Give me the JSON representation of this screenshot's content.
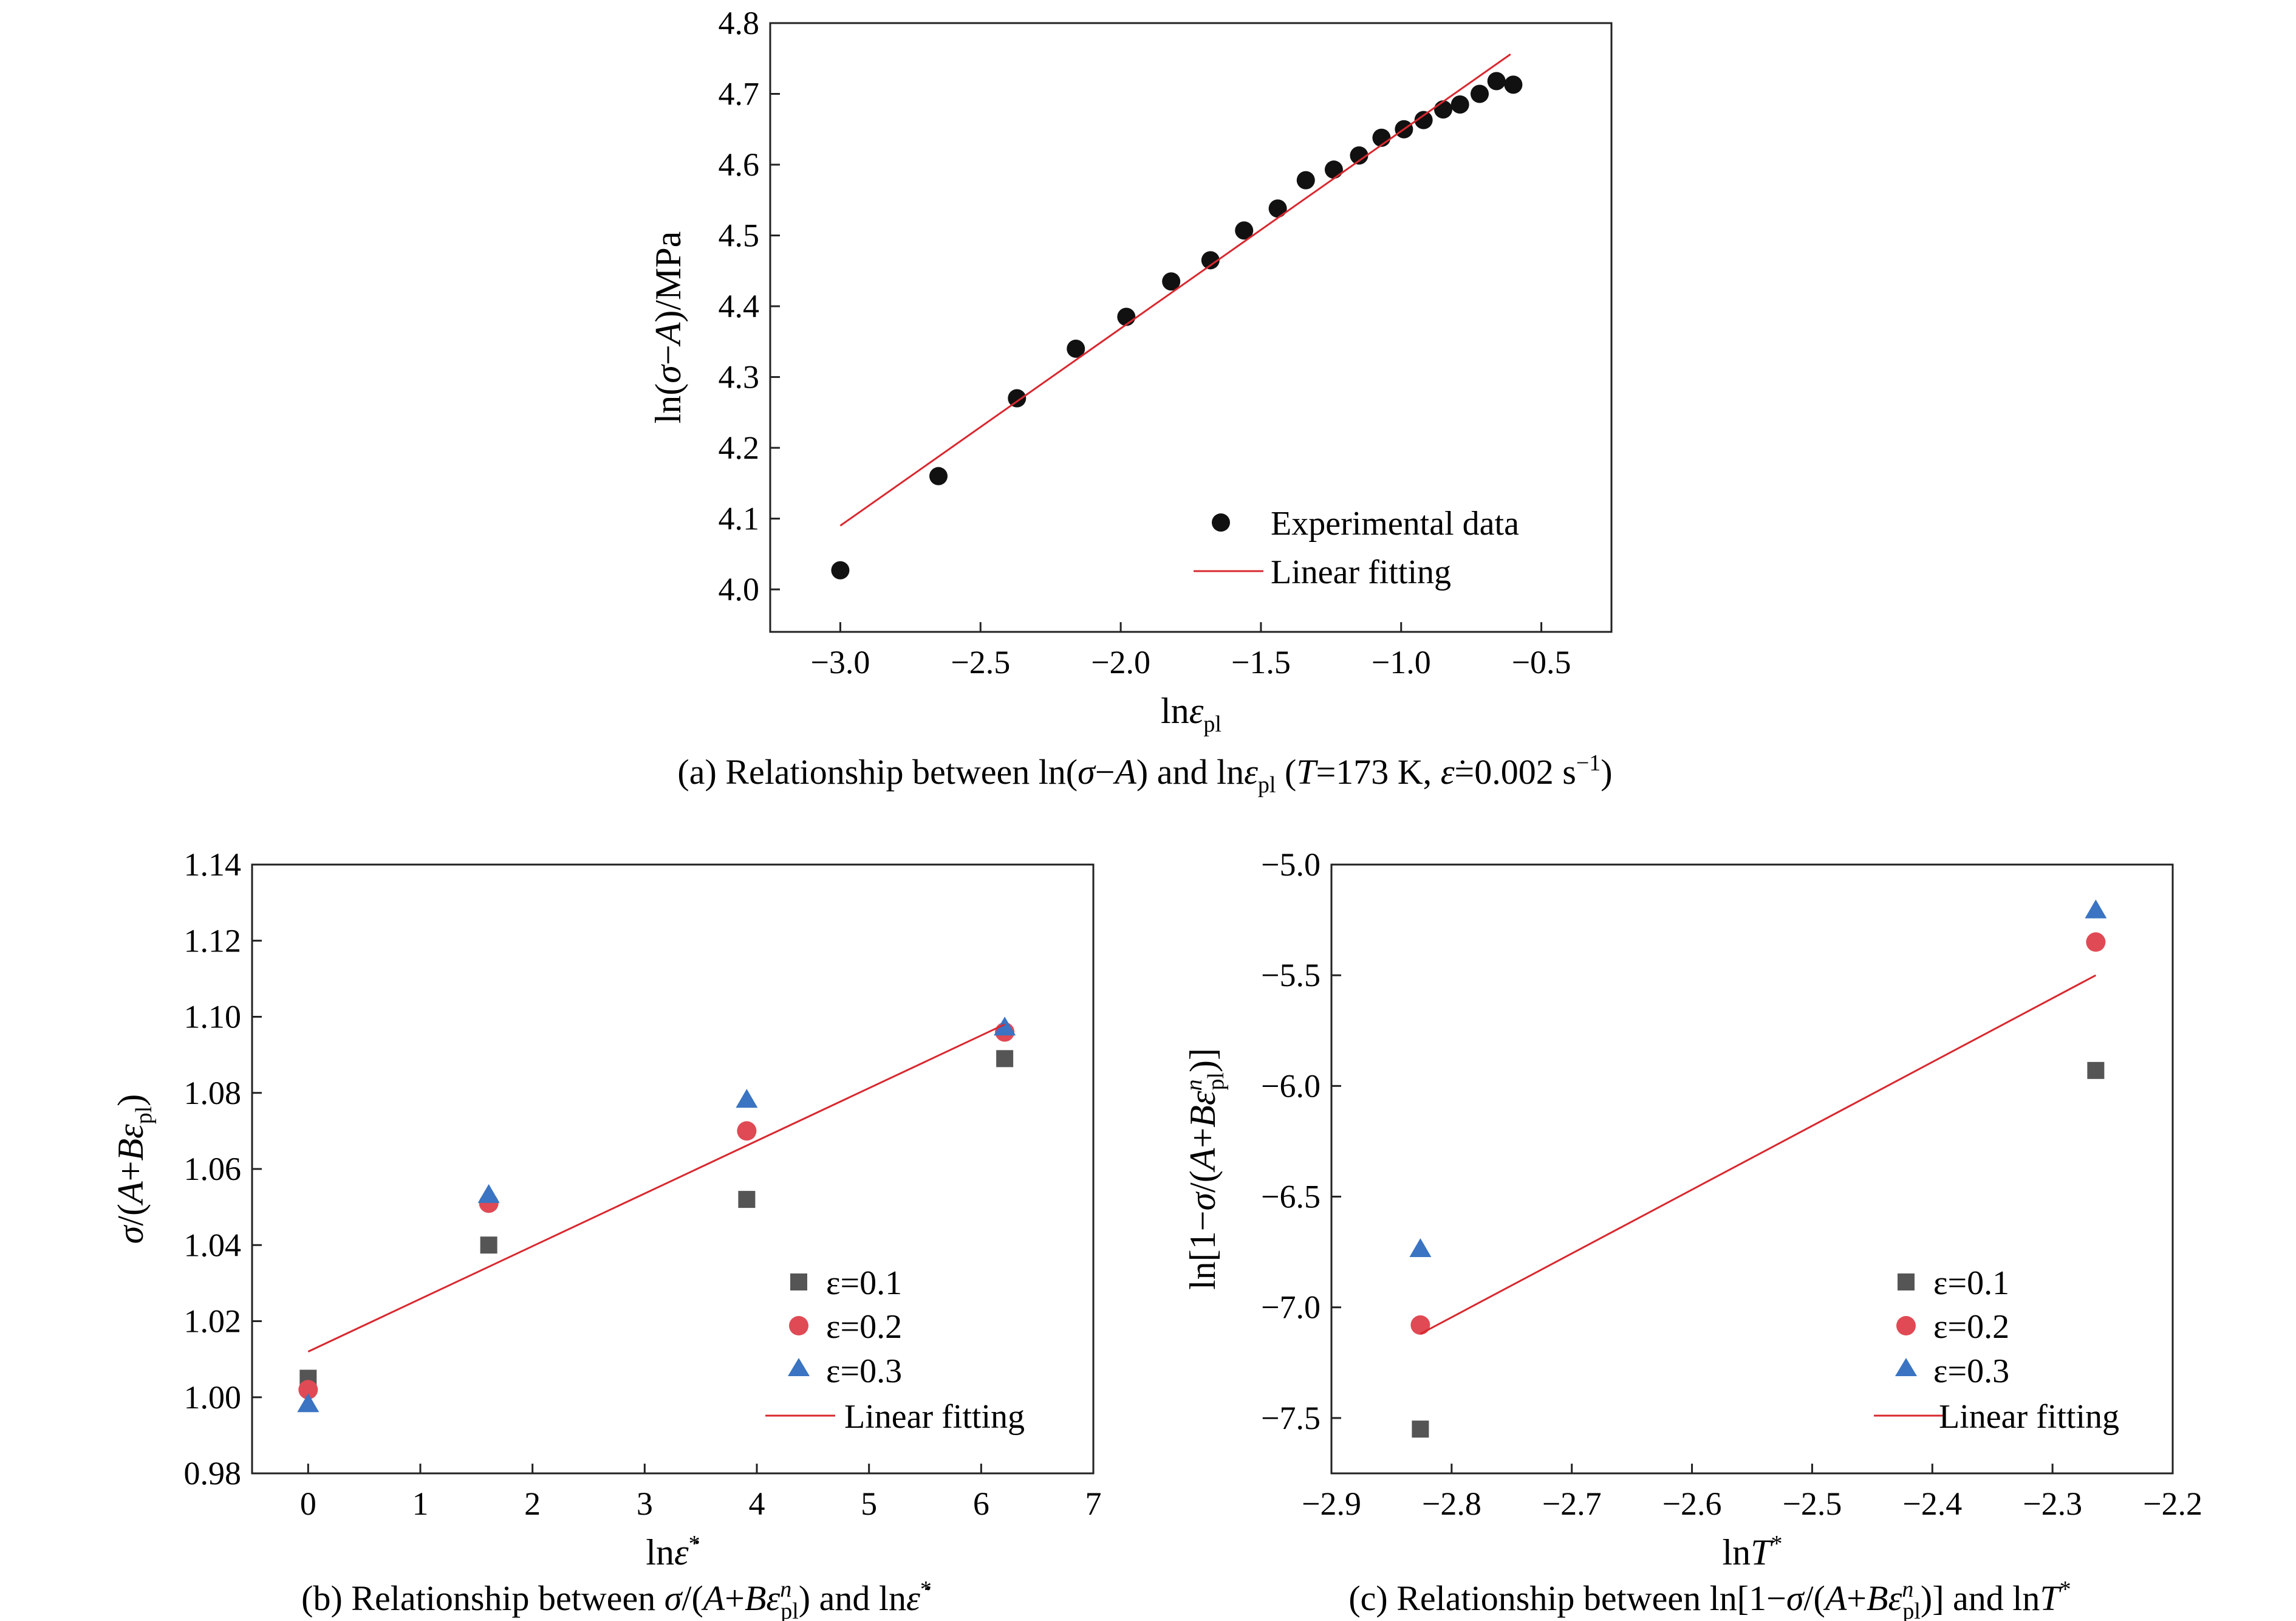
{
  "chart_data": [
    {
      "id": "a",
      "type": "scatter",
      "caption": "(a) Relationship between ln(σ−A) and lnεpl (T=173 K, ε̇=0.002 s⁻¹)",
      "xlabel": "lnεpl",
      "ylabel": "ln(σ−A)/MPa",
      "xlim": [
        -3.25,
        -0.25
      ],
      "ylim": [
        3.94,
        4.8
      ],
      "xticks": [
        -3.0,
        -2.5,
        -2.0,
        -1.5,
        -1.0,
        -0.5
      ],
      "xtick_labels": [
        "−3.0",
        "−2.5",
        "−2.0",
        "−1.5",
        "−1.0",
        "−0.5"
      ],
      "yticks": [
        4.0,
        4.1,
        4.2,
        4.3,
        4.4,
        4.5,
        4.6,
        4.7,
        4.8
      ],
      "ytick_labels": [
        "4.0",
        "4.1",
        "4.2",
        "4.3",
        "4.4",
        "4.5",
        "4.6",
        "4.7",
        "4.8"
      ],
      "legend_position": "bottom-right",
      "grid": false,
      "series": [
        {
          "name": "Experimental data",
          "marker": "circle",
          "color": "#111111",
          "x": [
            -3.0,
            -2.65,
            -2.37,
            -2.16,
            -1.98,
            -1.82,
            -1.68,
            -1.56,
            -1.44,
            -1.34,
            -1.24,
            -1.15,
            -1.07,
            -0.99,
            -0.92,
            -0.85,
            -0.79,
            -0.72,
            -0.66,
            -0.6
          ],
          "y": [
            4.027,
            4.16,
            4.27,
            4.34,
            4.385,
            4.435,
            4.465,
            4.507,
            4.538,
            4.578,
            4.593,
            4.613,
            4.638,
            4.65,
            4.663,
            4.678,
            4.685,
            4.7,
            4.718,
            4.713
          ]
        },
        {
          "name": "Linear fitting",
          "line": true,
          "color": "#d9282f",
          "x": [
            -3.0,
            -0.61
          ],
          "y": [
            4.09,
            4.756
          ]
        }
      ]
    },
    {
      "id": "b",
      "type": "scatter",
      "caption": "(b) Relationship between σ/(A+Bεⁿpl) and lnε̇*",
      "xlabel": "lnε̇*",
      "ylabel": "σ/(A+Bεpl)",
      "xlim": [
        -0.5,
        7
      ],
      "ylim": [
        0.98,
        1.14
      ],
      "xticks": [
        0,
        1,
        2,
        3,
        4,
        5,
        6,
        7
      ],
      "xtick_labels": [
        "0",
        "1",
        "2",
        "3",
        "4",
        "5",
        "6",
        "7"
      ],
      "yticks": [
        0.98,
        1.0,
        1.02,
        1.04,
        1.06,
        1.08,
        1.1,
        1.12,
        1.14
      ],
      "ytick_labels": [
        "0.98",
        "1.00",
        "1.02",
        "1.04",
        "1.06",
        "1.08",
        "1.10",
        "1.12",
        "1.14"
      ],
      "legend_position": "bottom-right",
      "grid": false,
      "series": [
        {
          "name": "ε=0.1",
          "marker": "square",
          "color": "#555555",
          "x": [
            0,
            1.61,
            3.91,
            6.21
          ],
          "y": [
            1.005,
            1.04,
            1.052,
            1.089
          ]
        },
        {
          "name": "ε=0.2",
          "marker": "circle",
          "color": "#e04a55",
          "x": [
            0,
            1.61,
            3.91,
            6.21
          ],
          "y": [
            1.002,
            1.051,
            1.07,
            1.096
          ]
        },
        {
          "name": "ε=0.3",
          "marker": "triangle",
          "color": "#3a74c2",
          "x": [
            0,
            1.61,
            3.91,
            6.21
          ],
          "y": [
            0.998,
            1.053,
            1.078,
            1.097
          ]
        },
        {
          "name": "Linear fitting",
          "line": true,
          "color": "#d9282f",
          "x": [
            0,
            6.21
          ],
          "y": [
            1.012,
            1.098
          ]
        }
      ]
    },
    {
      "id": "c",
      "type": "scatter",
      "caption": "(c) Relationship between ln[1−σ/(A+Bεⁿpl)] and lnT*",
      "xlabel": "lnT*",
      "ylabel": "ln[1−σ/(A+Bεⁿpl)]",
      "xlim": [
        -2.9,
        -2.2
      ],
      "ylim": [
        -7.75,
        -5.0
      ],
      "xticks": [
        -2.9,
        -2.8,
        -2.7,
        -2.6,
        -2.5,
        -2.4,
        -2.3,
        -2.2
      ],
      "xtick_labels": [
        "−2.9",
        "−2.8",
        "−2.7",
        "−2.6",
        "−2.5",
        "−2.4",
        "−2.3",
        "−2.2"
      ],
      "yticks": [
        -7.5,
        -7.0,
        -6.5,
        -6.0,
        -5.5,
        -5.0
      ],
      "ytick_labels": [
        "−7.5",
        "−7.0",
        "−6.5",
        "−6.0",
        "−5.5",
        "−5.0"
      ],
      "legend_position": "bottom-right",
      "grid": false,
      "series": [
        {
          "name": "ε=0.1",
          "marker": "square",
          "color": "#555555",
          "x": [
            -2.826,
            -2.264
          ],
          "y": [
            -7.55,
            -5.93
          ]
        },
        {
          "name": "ε=0.2",
          "marker": "circle",
          "color": "#e04a55",
          "x": [
            -2.826,
            -2.264
          ],
          "y": [
            -7.08,
            -5.35
          ]
        },
        {
          "name": "ε=0.3",
          "marker": "triangle",
          "color": "#3a74c2",
          "x": [
            -2.826,
            -2.264
          ],
          "y": [
            -6.74,
            -5.21
          ]
        },
        {
          "name": "Linear fitting",
          "line": true,
          "color": "#d9282f",
          "x": [
            -2.826,
            -2.264
          ],
          "y": [
            -7.12,
            -5.5
          ]
        }
      ]
    }
  ]
}
